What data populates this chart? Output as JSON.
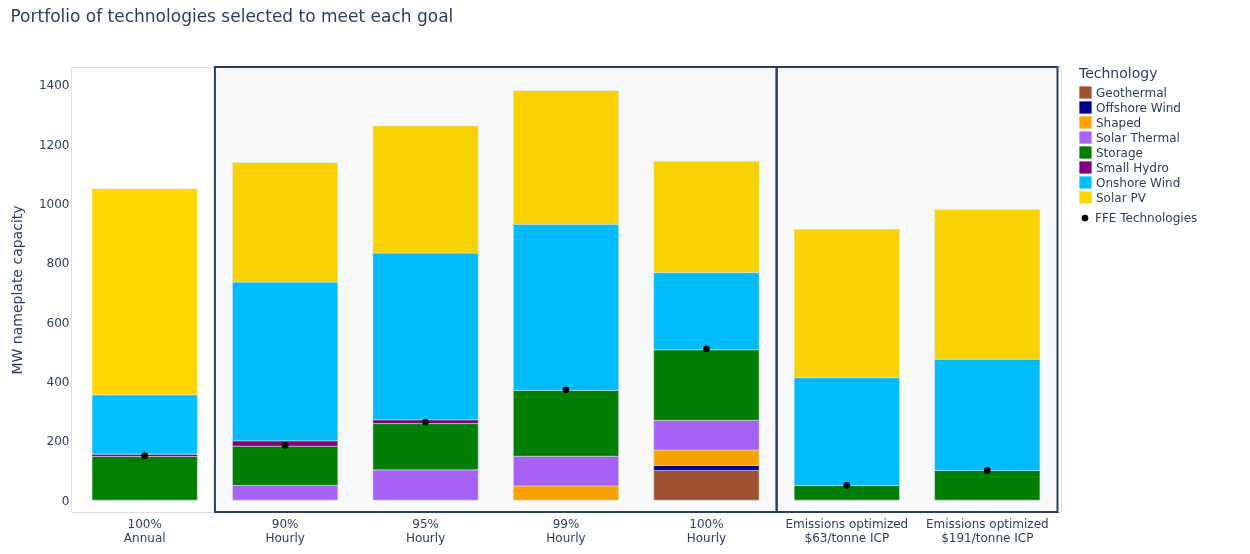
{
  "chart_data": {
    "type": "bar",
    "title": "Portfolio of technologies selected to meet each goal",
    "ylabel": "MW nameplate capacity",
    "legend_title": "Technology",
    "categories": [
      "100%\nAnnual",
      "90%\nHourly",
      "95%\nHourly",
      "99%\nHourly",
      "100%\nHourly",
      "Emissions optimized\n$63/tonne ICP",
      "Emissions optimized\n$191/tonne ICP"
    ],
    "stacked": true,
    "series": [
      {
        "name": "Geothermal",
        "color": "#a0522d",
        "values": [
          null,
          null,
          null,
          null,
          100,
          null,
          null
        ]
      },
      {
        "name": "Offshore Wind",
        "color": "#00008b",
        "values": [
          null,
          null,
          null,
          null,
          17,
          null,
          null
        ]
      },
      {
        "name": "Shaped",
        "color": "#ffa500",
        "values": [
          null,
          null,
          null,
          48,
          52,
          null,
          null
        ]
      },
      {
        "name": "Solar Thermal",
        "color": "#ab63fa",
        "values": [
          null,
          50,
          102,
          100,
          100,
          null,
          null
        ]
      },
      {
        "name": "Storage",
        "color": "#008000",
        "values": [
          147,
          132,
          156,
          222,
          238,
          50,
          100
        ]
      },
      {
        "name": "Small Hydro",
        "color": "#800080",
        "values": [
          8,
          18,
          13,
          null,
          null,
          null,
          null
        ]
      },
      {
        "name": "Onshore Wind",
        "color": "#00bfff",
        "values": [
          200,
          535,
          562,
          560,
          260,
          363,
          375
        ]
      },
      {
        "name": "Solar PV",
        "color": "#ffd700",
        "values": [
          695,
          403,
          428,
          450,
          375,
          500,
          505
        ]
      },
      {
        "name": "FFE Technologies",
        "type": "scatter",
        "color": "#000000",
        "marker": "circle",
        "x": [
          "100%\nAnnual",
          "90%\nHourly",
          "95%\nHourly",
          "99%\nHourly",
          "100%\nHourly",
          "Emissions optimized\n$63/tonne ICP",
          "Emissions optimized\n$191/tonne ICP"
        ],
        "values": [
          150,
          185,
          263,
          372,
          510,
          50,
          100
        ]
      }
    ],
    "bands": [
      {
        "axis": "x",
        "from": "90%\nHourly",
        "to": "100%\nHourly",
        "color": "#2a3f5f"
      },
      {
        "axis": "x",
        "from": "Emissions optimized\n$63/tonne ICP",
        "to": "Emissions optimized\n$191/tonne ICP",
        "color": "#2a3f5f"
      }
    ],
    "ylim": [
      -40,
      1460
    ],
    "yticks": [
      0,
      200,
      400,
      600,
      800,
      1000,
      1200,
      1400
    ],
    "grid": "y",
    "legend": "right"
  }
}
